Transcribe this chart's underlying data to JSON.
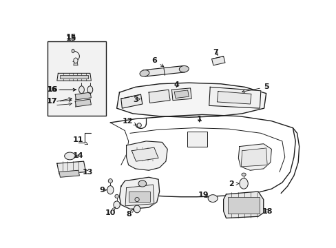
{
  "bg_color": "#ffffff",
  "fig_width": 4.89,
  "fig_height": 3.6,
  "dpi": 100,
  "gray": "#1a1a1a",
  "light_gray": "#e8e8e8",
  "mid_gray": "#d0d0d0",
  "box_bg": "#f0f0f0"
}
